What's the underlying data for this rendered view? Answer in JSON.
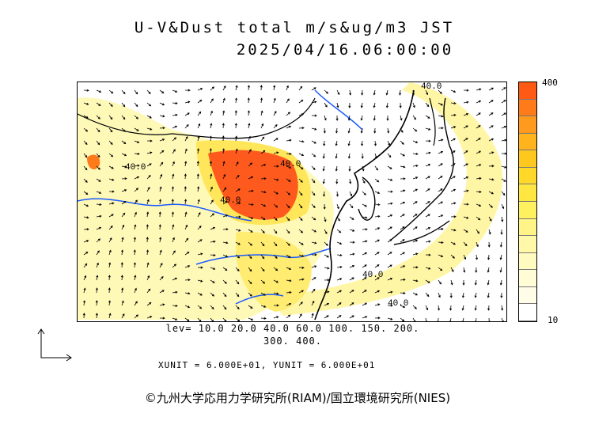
{
  "title": "U-V&Dust total m/s&ug/m3 JST",
  "timestamp": "2025/04/16.06:00:00",
  "colorbar": {
    "max_label": "400",
    "min_label": "10",
    "colors": [
      "#ff5a14",
      "#ff7a18",
      "#ff9a1e",
      "#ffb41e",
      "#ffc81e",
      "#ffd82a",
      "#ffe640",
      "#fff060",
      "#fff488",
      "#fff8a8",
      "#fffac0",
      "#fffcd6",
      "#fffde8",
      "#ffffff"
    ]
  },
  "levels_line1": "lev= 10.0 20.0 40.0 60.0 100. 150. 200.",
  "levels_line2": "300. 400.",
  "units_text": "XUNIT = 6.000E+01, YUNIT = 6.000E+01",
  "credit": "©九州大学応用力学研究所(RIAM)/国立環境研究所(NIES)",
  "contour_labels": [
    "40.0",
    "40.0",
    "40.0",
    "40.0",
    "40.0",
    "40.0"
  ],
  "colors": {
    "coast": "#000000",
    "river": "#1a5aff",
    "heavy": "#ff5a1e",
    "light": "#fff6a0"
  }
}
